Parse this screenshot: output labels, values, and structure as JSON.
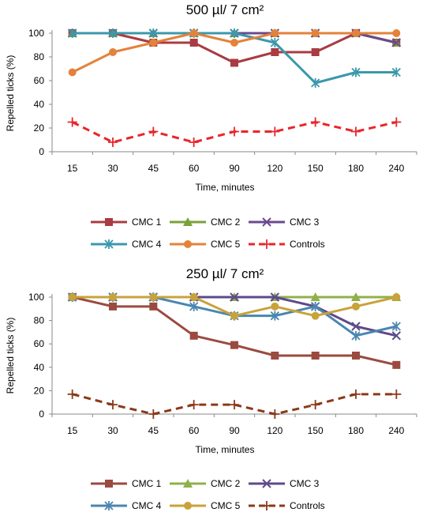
{
  "chart_data": [
    {
      "type": "line",
      "title": "500 µl/ 7 cm²",
      "xlabel": "Time, minutes",
      "ylabel": "Repelled ticks (%)",
      "ylim": [
        0,
        100
      ],
      "yticks": [
        0,
        20,
        40,
        60,
        80,
        100
      ],
      "categories": [
        "15",
        "30",
        "45",
        "60",
        "90",
        "120",
        "150",
        "180",
        "240"
      ],
      "legend_position": "bottom",
      "series": [
        {
          "name": "CMC 1",
          "color": "#a83c42",
          "marker": "square",
          "dash": false,
          "values": [
            100,
            100,
            92,
            92,
            75,
            84,
            84,
            100,
            92
          ]
        },
        {
          "name": "CMC 2",
          "color": "#7aa03a",
          "marker": "triangle",
          "dash": false,
          "values": [
            100,
            100,
            100,
            100,
            100,
            100,
            100,
            100,
            92
          ]
        },
        {
          "name": "CMC 3",
          "color": "#6b4a8c",
          "marker": "x",
          "dash": false,
          "values": [
            100,
            100,
            100,
            100,
            100,
            100,
            100,
            100,
            92
          ]
        },
        {
          "name": "CMC 4",
          "color": "#3b98ab",
          "marker": "asterisk",
          "dash": false,
          "values": [
            100,
            100,
            100,
            100,
            100,
            92,
            58,
            67,
            67
          ]
        },
        {
          "name": "CMC 5",
          "color": "#e4823a",
          "marker": "circle",
          "dash": false,
          "values": [
            67,
            84,
            92,
            100,
            92,
            100,
            100,
            100,
            100
          ]
        },
        {
          "name": "Controls",
          "color": "#e8262a",
          "marker": "plus",
          "dash": true,
          "values": [
            25,
            8,
            17,
            8,
            17,
            17,
            25,
            17,
            25
          ]
        }
      ]
    },
    {
      "type": "line",
      "title": "250 µl/ 7 cm²",
      "xlabel": "Time, minutes",
      "ylabel": "Repelled ticks (%)",
      "ylim": [
        0,
        100
      ],
      "yticks": [
        0,
        20,
        40,
        60,
        80,
        100
      ],
      "categories": [
        "15",
        "30",
        "45",
        "60",
        "90",
        "120",
        "150",
        "180",
        "240"
      ],
      "legend_position": "bottom",
      "series": [
        {
          "name": "CMC 1",
          "color": "#9b4a40",
          "marker": "square",
          "dash": false,
          "values": [
            100,
            92,
            92,
            67,
            59,
            50,
            50,
            50,
            42
          ]
        },
        {
          "name": "CMC 2",
          "color": "#8fb04a",
          "marker": "triangle",
          "dash": false,
          "values": [
            100,
            100,
            100,
            100,
            100,
            100,
            100,
            100,
            100
          ]
        },
        {
          "name": "CMC 3",
          "color": "#5e4a8a",
          "marker": "x",
          "dash": false,
          "values": [
            100,
            100,
            100,
            100,
            100,
            100,
            92,
            75,
            67
          ]
        },
        {
          "name": "CMC 4",
          "color": "#4a86b0",
          "marker": "asterisk",
          "dash": false,
          "values": [
            100,
            100,
            100,
            92,
            84,
            84,
            92,
            67,
            75
          ]
        },
        {
          "name": "CMC 5",
          "color": "#c9a23a",
          "marker": "circle",
          "dash": false,
          "values": [
            100,
            100,
            100,
            100,
            84,
            92,
            84,
            92,
            100
          ]
        },
        {
          "name": "Controls",
          "color": "#8a3a1a",
          "marker": "plus",
          "dash": true,
          "values": [
            17,
            8,
            0,
            8,
            8,
            0,
            8,
            17,
            17
          ]
        }
      ]
    }
  ]
}
